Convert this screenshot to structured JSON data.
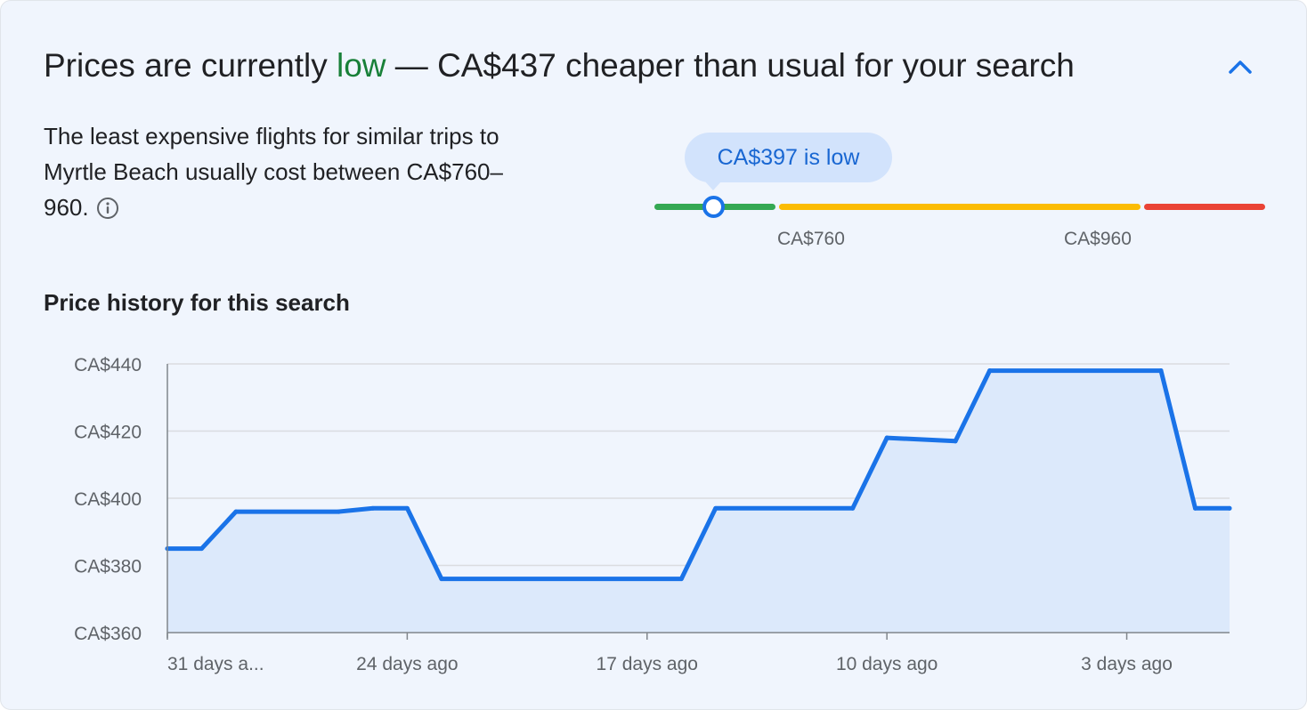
{
  "summary": {
    "headline_prefix": "Prices are currently ",
    "headline_status": "low",
    "headline_suffix": " — CA$437 cheaper than usual for your search",
    "description": "The least expensive flights for similar trips to Myrtle Beach usually cost between CA$760–960.",
    "collapse_icon": "chevron-up-icon",
    "info_icon": "info-icon"
  },
  "price_gauge": {
    "current_price": 397,
    "bubble_label": "CA$397 is low",
    "typical_low_label": "CA$760",
    "typical_high_label": "CA$960",
    "colors": {
      "low": "#34a853",
      "typical": "#fbbc04",
      "high": "#ea4335",
      "marker": "#1a73e8"
    }
  },
  "history": {
    "title": "Price history for this search"
  },
  "chart_data": {
    "type": "area",
    "title": "",
    "xlabel": "",
    "ylabel": "",
    "x_ticks": [
      {
        "days_ago": 31,
        "label": "31 days a..."
      },
      {
        "days_ago": 24,
        "label": "24 days ago"
      },
      {
        "days_ago": 17,
        "label": "17 days ago"
      },
      {
        "days_ago": 10,
        "label": "10 days ago"
      },
      {
        "days_ago": 3,
        "label": "3 days ago"
      }
    ],
    "y_ticks": [
      {
        "value": 360,
        "label": "CA$360"
      },
      {
        "value": 380,
        "label": "CA$380"
      },
      {
        "value": 400,
        "label": "CA$400"
      },
      {
        "value": 420,
        "label": "CA$420"
      },
      {
        "value": 440,
        "label": "CA$440"
      }
    ],
    "xlim": [
      31,
      0
    ],
    "ylim": [
      360,
      440
    ],
    "grid": true,
    "series": [
      {
        "color": "#1a73e8",
        "fill": "#dce9fb",
        "points": [
          {
            "days_ago": 31,
            "price": 385
          },
          {
            "days_ago": 30,
            "price": 385
          },
          {
            "days_ago": 29,
            "price": 396
          },
          {
            "days_ago": 26,
            "price": 396
          },
          {
            "days_ago": 25,
            "price": 397
          },
          {
            "days_ago": 24,
            "price": 397
          },
          {
            "days_ago": 23,
            "price": 376
          },
          {
            "days_ago": 16,
            "price": 376
          },
          {
            "days_ago": 15,
            "price": 397
          },
          {
            "days_ago": 11,
            "price": 397
          },
          {
            "days_ago": 10,
            "price": 418
          },
          {
            "days_ago": 8,
            "price": 417
          },
          {
            "days_ago": 7,
            "price": 438
          },
          {
            "days_ago": 2,
            "price": 438
          },
          {
            "days_ago": 1,
            "price": 397
          },
          {
            "days_ago": 0,
            "price": 397
          }
        ]
      }
    ]
  }
}
